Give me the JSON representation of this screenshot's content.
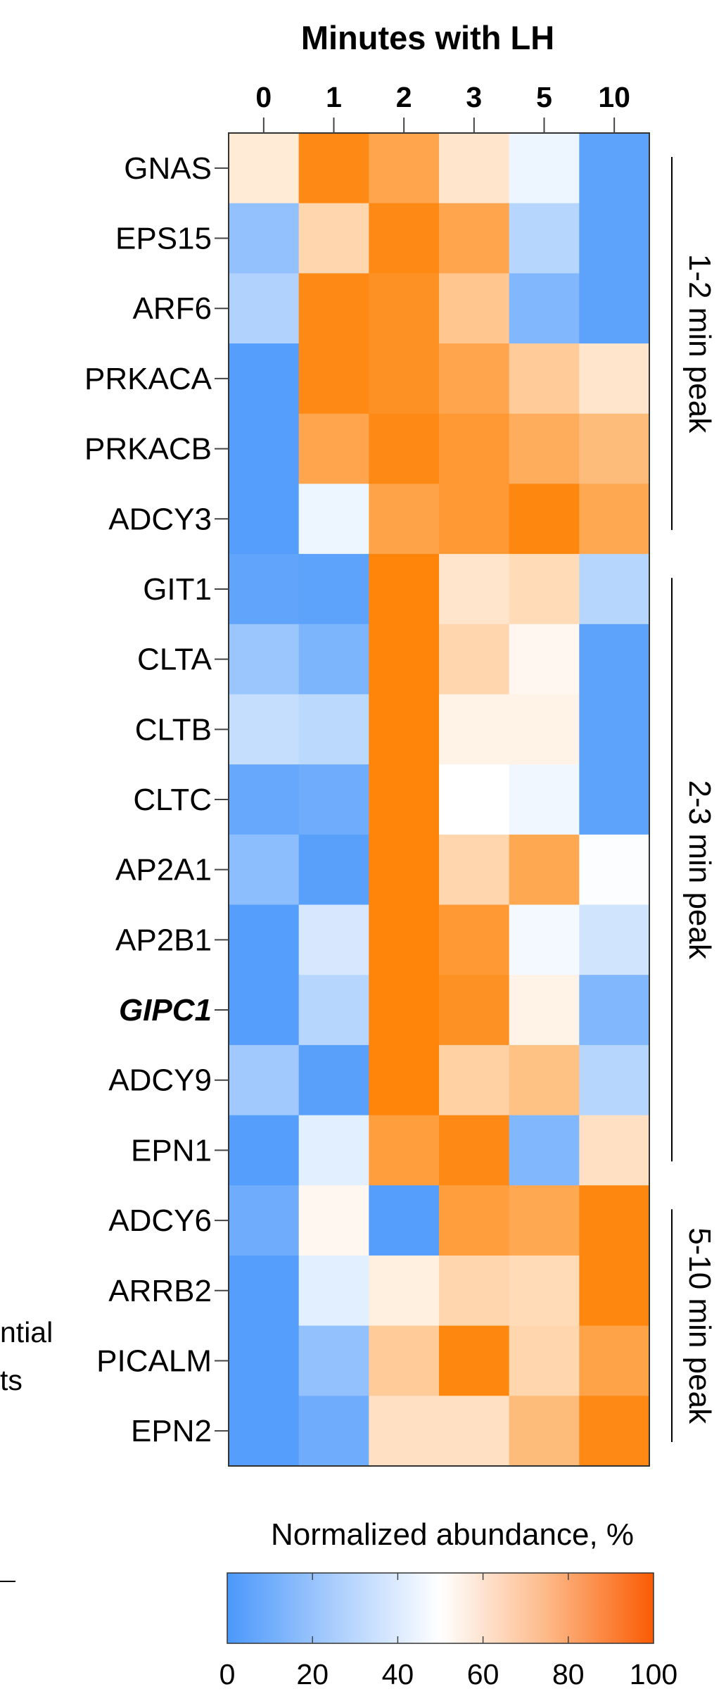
{
  "chart_data": {
    "type": "heatmap",
    "title": "Minutes with LH",
    "xlabel": "Minutes with LH",
    "ylabel": "",
    "x": [
      "0",
      "1",
      "2",
      "3",
      "5",
      "10"
    ],
    "y": [
      "GNAS",
      "EPS15",
      "ARF6",
      "PRKACA",
      "PRKACB",
      "ADCY3",
      "GIT1",
      "CLTA",
      "CLTB",
      "CLTC",
      "AP2A1",
      "AP2B1",
      "GIPC1",
      "ADCY9",
      "EPN1",
      "ADCY6",
      "ARRB2",
      "PICALM",
      "EPN2"
    ],
    "highlighted_row": "GIPC1",
    "values": [
      [
        58,
        96,
        85,
        60,
        45,
        5
      ],
      [
        20,
        66,
        96,
        85,
        30,
        5
      ],
      [
        28,
        96,
        93,
        72,
        15,
        5
      ],
      [
        3,
        96,
        93,
        85,
        70,
        60
      ],
      [
        3,
        85,
        96,
        90,
        82,
        76
      ],
      [
        3,
        45,
        86,
        90,
        97,
        84
      ],
      [
        6,
        5,
        98,
        60,
        64,
        30
      ],
      [
        22,
        14,
        98,
        66,
        53,
        5
      ],
      [
        34,
        31,
        98,
        55,
        55,
        5
      ],
      [
        8,
        10,
        98,
        50,
        46,
        5
      ],
      [
        18,
        4,
        98,
        66,
        84,
        49
      ],
      [
        3,
        39,
        98,
        90,
        47,
        37
      ],
      [
        3,
        30,
        98,
        93,
        55,
        15
      ],
      [
        24,
        4,
        98,
        68,
        74,
        30
      ],
      [
        3,
        42,
        88,
        96,
        15,
        62
      ],
      [
        10,
        53,
        3,
        88,
        84,
        97
      ],
      [
        3,
        42,
        56,
        66,
        64,
        97
      ],
      [
        3,
        20,
        70,
        97,
        66,
        86
      ],
      [
        3,
        10,
        62,
        62,
        76,
        96
      ]
    ],
    "groups": [
      {
        "label": "1-2 min peak",
        "first": "GNAS",
        "last": "ADCY3"
      },
      {
        "label": "2-3 min peak",
        "first": "GIT1",
        "last": "EPN1"
      },
      {
        "label": "5-10 min peak",
        "first": "ADCY6",
        "last": "EPN2"
      }
    ],
    "colorbar": {
      "label": "Normalized abundance, %",
      "range": [
        0,
        100
      ],
      "ticks": [
        "0",
        "20",
        "40",
        "60",
        "80",
        "100"
      ],
      "colors": [
        "#4b98fb",
        "#ffffff",
        "#fa5b03"
      ]
    },
    "cropped_text": [
      "ntial",
      "ts"
    ],
    "colors": {
      "low": "#4b98fb",
      "mid": "#ffffff",
      "high": "#fe7f00"
    }
  }
}
